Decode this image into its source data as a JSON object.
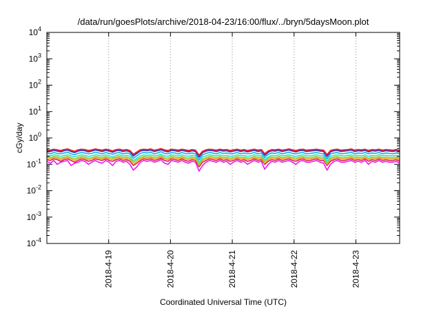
{
  "chart_data": {
    "type": "line",
    "title": "/data/run/goesPlots/archive/2018-04-23/16:00/flux/../bryn/5daysMoon.plot",
    "xlabel": "Coordinated Universal Time (UTC)",
    "ylabel": "cGy/day",
    "y_scale": "log",
    "ylim": [
      0.0001,
      10000
    ],
    "y_ticks": [
      {
        "base": "10",
        "exp": "-4",
        "value": 0.0001
      },
      {
        "base": "10",
        "exp": "-3",
        "value": 0.001
      },
      {
        "base": "10",
        "exp": "-2",
        "value": 0.01
      },
      {
        "base": "10",
        "exp": "-1",
        "value": 0.1
      },
      {
        "base": "10",
        "exp": "0",
        "value": 1
      },
      {
        "base": "10",
        "exp": "1",
        "value": 10
      },
      {
        "base": "10",
        "exp": "2",
        "value": 100
      },
      {
        "base": "10",
        "exp": "3",
        "value": 1000
      },
      {
        "base": "10",
        "exp": "4",
        "value": 10000
      }
    ],
    "xlim": [
      1524009600,
      1524502800
    ],
    "x_ticks": [
      {
        "label": "2018-4-19",
        "value": 1524096000
      },
      {
        "label": "2018-4-20",
        "value": 1524182400
      },
      {
        "label": "2018-4-21",
        "value": 1524268800
      },
      {
        "label": "2018-4-22",
        "value": 1524355200
      },
      {
        "label": "2018-4-23",
        "value": 1524441600
      }
    ],
    "grid": "vertical dotted at x ticks",
    "legend": "none",
    "series": [
      {
        "color": "#ee1c24",
        "values": [
          0.36,
          0.34,
          0.37,
          0.35,
          0.33,
          0.36,
          0.38,
          0.34,
          0.31,
          0.35,
          0.37,
          0.36,
          0.33,
          0.35,
          0.38,
          0.36,
          0.34,
          0.37,
          0.35,
          0.32,
          0.36,
          0.37,
          0.34,
          0.36,
          0.33,
          0.24,
          0.29,
          0.35,
          0.37,
          0.36,
          0.38,
          0.34,
          0.36,
          0.39,
          0.35,
          0.33,
          0.37,
          0.36,
          0.34,
          0.37,
          0.35,
          0.33,
          0.36,
          0.34,
          0.22,
          0.31,
          0.35,
          0.37,
          0.36,
          0.34,
          0.37,
          0.35,
          0.36,
          0.33,
          0.35,
          0.37,
          0.34,
          0.36,
          0.33,
          0.35,
          0.37,
          0.34,
          0.36,
          0.25,
          0.32,
          0.36,
          0.35,
          0.37,
          0.34,
          0.36,
          0.38,
          0.35,
          0.33,
          0.36,
          0.37,
          0.34,
          0.35,
          0.36,
          0.37,
          0.35,
          0.34,
          0.23,
          0.33,
          0.36,
          0.37,
          0.34,
          0.35,
          0.36,
          0.38,
          0.34,
          0.36,
          0.35,
          0.37,
          0.33,
          0.36,
          0.35,
          0.37,
          0.34,
          0.36,
          0.35,
          0.34,
          0.36,
          0.33
        ]
      },
      {
        "color": "#1f3fd6",
        "values": [
          0.33,
          0.31,
          0.34,
          0.32,
          0.3,
          0.33,
          0.35,
          0.31,
          0.28,
          0.32,
          0.34,
          0.33,
          0.3,
          0.32,
          0.35,
          0.33,
          0.31,
          0.34,
          0.32,
          0.29,
          0.33,
          0.34,
          0.31,
          0.33,
          0.3,
          0.21,
          0.26,
          0.32,
          0.34,
          0.33,
          0.35,
          0.31,
          0.33,
          0.36,
          0.32,
          0.3,
          0.34,
          0.33,
          0.31,
          0.34,
          0.32,
          0.3,
          0.33,
          0.31,
          0.19,
          0.28,
          0.32,
          0.34,
          0.33,
          0.31,
          0.34,
          0.32,
          0.33,
          0.3,
          0.32,
          0.34,
          0.31,
          0.33,
          0.3,
          0.32,
          0.34,
          0.31,
          0.33,
          0.22,
          0.29,
          0.33,
          0.32,
          0.34,
          0.31,
          0.33,
          0.35,
          0.32,
          0.3,
          0.33,
          0.34,
          0.31,
          0.32,
          0.33,
          0.34,
          0.32,
          0.31,
          0.2,
          0.3,
          0.33,
          0.34,
          0.31,
          0.32,
          0.33,
          0.35,
          0.31,
          0.33,
          0.32,
          0.34,
          0.3,
          0.33,
          0.32,
          0.34,
          0.31,
          0.33,
          0.32,
          0.31,
          0.33,
          0.3
        ]
      },
      {
        "color": "#19a9e6",
        "values": [
          0.27,
          0.25,
          0.28,
          0.26,
          0.25,
          0.27,
          0.29,
          0.25,
          0.23,
          0.26,
          0.28,
          0.27,
          0.25,
          0.26,
          0.29,
          0.27,
          0.25,
          0.28,
          0.26,
          0.24,
          0.27,
          0.28,
          0.25,
          0.27,
          0.25,
          0.17,
          0.21,
          0.26,
          0.28,
          0.27,
          0.29,
          0.25,
          0.27,
          0.3,
          0.26,
          0.25,
          0.28,
          0.27,
          0.25,
          0.28,
          0.26,
          0.25,
          0.27,
          0.25,
          0.15,
          0.23,
          0.26,
          0.28,
          0.27,
          0.25,
          0.28,
          0.26,
          0.27,
          0.25,
          0.26,
          0.28,
          0.25,
          0.27,
          0.25,
          0.26,
          0.28,
          0.25,
          0.27,
          0.18,
          0.24,
          0.27,
          0.26,
          0.28,
          0.25,
          0.27,
          0.29,
          0.26,
          0.25,
          0.27,
          0.28,
          0.25,
          0.26,
          0.27,
          0.28,
          0.26,
          0.25,
          0.16,
          0.25,
          0.27,
          0.28,
          0.25,
          0.26,
          0.27,
          0.29,
          0.25,
          0.27,
          0.26,
          0.28,
          0.25,
          0.27,
          0.26,
          0.28,
          0.25,
          0.27,
          0.26,
          0.25,
          0.27,
          0.25
        ]
      },
      {
        "color": "#2ee1c8",
        "values": [
          0.22,
          0.21,
          0.23,
          0.22,
          0.2,
          0.22,
          0.23,
          0.21,
          0.19,
          0.21,
          0.23,
          0.22,
          0.2,
          0.21,
          0.23,
          0.22,
          0.21,
          0.23,
          0.21,
          0.19,
          0.22,
          0.23,
          0.21,
          0.22,
          0.2,
          0.14,
          0.17,
          0.21,
          0.23,
          0.22,
          0.23,
          0.21,
          0.22,
          0.24,
          0.21,
          0.2,
          0.23,
          0.22,
          0.21,
          0.23,
          0.21,
          0.2,
          0.22,
          0.21,
          0.12,
          0.19,
          0.21,
          0.23,
          0.22,
          0.21,
          0.23,
          0.21,
          0.22,
          0.2,
          0.21,
          0.23,
          0.21,
          0.22,
          0.2,
          0.21,
          0.23,
          0.21,
          0.22,
          0.15,
          0.19,
          0.22,
          0.21,
          0.23,
          0.21,
          0.22,
          0.23,
          0.21,
          0.2,
          0.22,
          0.23,
          0.21,
          0.21,
          0.22,
          0.23,
          0.21,
          0.21,
          0.13,
          0.2,
          0.22,
          0.23,
          0.21,
          0.21,
          0.22,
          0.23,
          0.21,
          0.22,
          0.21,
          0.23,
          0.2,
          0.22,
          0.21,
          0.23,
          0.21,
          0.22,
          0.21,
          0.21,
          0.22,
          0.2
        ]
      },
      {
        "color": "#8fcf3c",
        "values": [
          0.19,
          0.18,
          0.2,
          0.19,
          0.17,
          0.19,
          0.2,
          0.18,
          0.16,
          0.18,
          0.2,
          0.19,
          0.17,
          0.18,
          0.2,
          0.19,
          0.18,
          0.2,
          0.18,
          0.17,
          0.19,
          0.2,
          0.18,
          0.19,
          0.17,
          0.12,
          0.15,
          0.18,
          0.2,
          0.19,
          0.2,
          0.18,
          0.19,
          0.21,
          0.18,
          0.17,
          0.2,
          0.19,
          0.18,
          0.2,
          0.18,
          0.17,
          0.19,
          0.18,
          0.1,
          0.16,
          0.18,
          0.2,
          0.19,
          0.18,
          0.2,
          0.18,
          0.19,
          0.17,
          0.18,
          0.2,
          0.18,
          0.19,
          0.17,
          0.18,
          0.2,
          0.18,
          0.19,
          0.13,
          0.17,
          0.19,
          0.18,
          0.2,
          0.18,
          0.19,
          0.2,
          0.18,
          0.17,
          0.19,
          0.2,
          0.18,
          0.18,
          0.19,
          0.2,
          0.18,
          0.18,
          0.11,
          0.17,
          0.19,
          0.2,
          0.18,
          0.18,
          0.19,
          0.2,
          0.18,
          0.19,
          0.18,
          0.2,
          0.17,
          0.19,
          0.18,
          0.2,
          0.18,
          0.19,
          0.18,
          0.18,
          0.19,
          0.17
        ]
      },
      {
        "color": "#f0a21a",
        "values": [
          0.17,
          0.16,
          0.18,
          0.17,
          0.15,
          0.17,
          0.18,
          0.16,
          0.14,
          0.16,
          0.18,
          0.17,
          0.15,
          0.16,
          0.18,
          0.17,
          0.16,
          0.18,
          0.16,
          0.15,
          0.17,
          0.18,
          0.16,
          0.17,
          0.15,
          0.1,
          0.13,
          0.16,
          0.18,
          0.17,
          0.18,
          0.16,
          0.17,
          0.19,
          0.16,
          0.15,
          0.18,
          0.17,
          0.16,
          0.18,
          0.16,
          0.15,
          0.17,
          0.16,
          0.09,
          0.14,
          0.16,
          0.18,
          0.17,
          0.16,
          0.18,
          0.16,
          0.17,
          0.15,
          0.16,
          0.18,
          0.16,
          0.17,
          0.15,
          0.16,
          0.18,
          0.16,
          0.17,
          0.11,
          0.15,
          0.17,
          0.16,
          0.18,
          0.16,
          0.17,
          0.18,
          0.16,
          0.15,
          0.17,
          0.18,
          0.16,
          0.16,
          0.17,
          0.18,
          0.16,
          0.16,
          0.1,
          0.15,
          0.17,
          0.18,
          0.16,
          0.16,
          0.17,
          0.18,
          0.16,
          0.17,
          0.16,
          0.18,
          0.15,
          0.17,
          0.16,
          0.18,
          0.16,
          0.17,
          0.16,
          0.16,
          0.17,
          0.15
        ]
      },
      {
        "color": "#d81c5a",
        "values": [
          0.15,
          0.14,
          0.16,
          0.15,
          0.13,
          0.15,
          0.16,
          0.14,
          0.12,
          0.14,
          0.16,
          0.15,
          0.13,
          0.14,
          0.16,
          0.15,
          0.14,
          0.16,
          0.14,
          0.13,
          0.15,
          0.16,
          0.14,
          0.15,
          0.13,
          0.09,
          0.11,
          0.14,
          0.16,
          0.15,
          0.16,
          0.14,
          0.15,
          0.17,
          0.14,
          0.13,
          0.16,
          0.15,
          0.14,
          0.16,
          0.14,
          0.13,
          0.15,
          0.14,
          0.08,
          0.12,
          0.14,
          0.16,
          0.15,
          0.14,
          0.16,
          0.14,
          0.15,
          0.13,
          0.14,
          0.16,
          0.14,
          0.15,
          0.13,
          0.14,
          0.16,
          0.14,
          0.15,
          0.1,
          0.13,
          0.15,
          0.14,
          0.16,
          0.14,
          0.15,
          0.16,
          0.14,
          0.13,
          0.15,
          0.16,
          0.14,
          0.14,
          0.15,
          0.16,
          0.14,
          0.14,
          0.09,
          0.13,
          0.15,
          0.16,
          0.14,
          0.14,
          0.15,
          0.16,
          0.14,
          0.15,
          0.14,
          0.16,
          0.13,
          0.15,
          0.14,
          0.16,
          0.14,
          0.15,
          0.14,
          0.14,
          0.15,
          0.13
        ]
      },
      {
        "color": "#ee18ea",
        "values": [
          0.13,
          0.11,
          0.14,
          0.1,
          0.12,
          0.13,
          0.14,
          0.09,
          0.11,
          0.12,
          0.14,
          0.13,
          0.1,
          0.12,
          0.14,
          0.12,
          0.11,
          0.14,
          0.12,
          0.09,
          0.13,
          0.14,
          0.12,
          0.13,
          0.1,
          0.06,
          0.08,
          0.12,
          0.14,
          0.13,
          0.14,
          0.12,
          0.13,
          0.15,
          0.11,
          0.1,
          0.14,
          0.13,
          0.12,
          0.14,
          0.12,
          0.11,
          0.13,
          0.12,
          0.055,
          0.09,
          0.12,
          0.14,
          0.13,
          0.12,
          0.14,
          0.12,
          0.13,
          0.1,
          0.12,
          0.14,
          0.12,
          0.13,
          0.1,
          0.12,
          0.14,
          0.12,
          0.13,
          0.065,
          0.1,
          0.13,
          0.12,
          0.14,
          0.12,
          0.13,
          0.14,
          0.12,
          0.1,
          0.13,
          0.14,
          0.12,
          0.12,
          0.13,
          0.14,
          0.12,
          0.11,
          0.06,
          0.1,
          0.13,
          0.14,
          0.12,
          0.12,
          0.13,
          0.14,
          0.12,
          0.13,
          0.12,
          0.14,
          0.1,
          0.13,
          0.12,
          0.14,
          0.12,
          0.13,
          0.12,
          0.12,
          0.13,
          0.11
        ]
      }
    ]
  }
}
